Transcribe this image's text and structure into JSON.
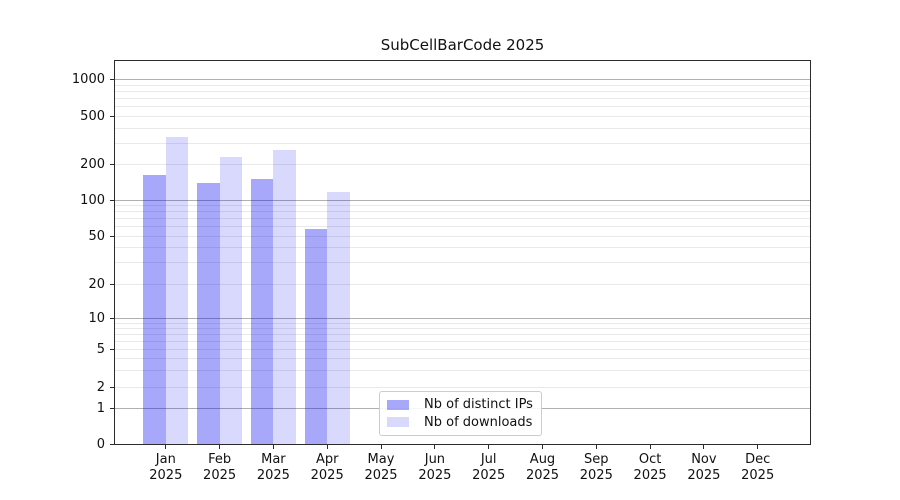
{
  "title": "SubCellBarCode 2025",
  "chart_data": {
    "type": "bar",
    "title": "SubCellBarCode 2025",
    "xlabel": "",
    "ylabel": "",
    "categories": [
      "Jan",
      "Feb",
      "Mar",
      "Apr",
      "May",
      "Jun",
      "Jul",
      "Aug",
      "Sep",
      "Oct",
      "Nov",
      "Dec"
    ],
    "category_year": "2025",
    "series": [
      {
        "name": "Nb of distinct IPs",
        "color": "rgba(0,0,240,0.34)",
        "color_hex_on_white": "#a8a8f8",
        "values": [
          162,
          140,
          152,
          57,
          0,
          0,
          0,
          0,
          0,
          0,
          0,
          0
        ]
      },
      {
        "name": "Nb of downloads",
        "color": "rgba(0,0,240,0.15)",
        "color_hex_on_white": "#d9d9fc",
        "values": [
          340,
          230,
          262,
          118,
          0,
          0,
          0,
          0,
          0,
          0,
          0,
          0
        ]
      }
    ],
    "yscale": "log-like with zero baseline",
    "yticks": [
      0,
      1,
      2,
      5,
      10,
      20,
      50,
      100,
      200,
      500,
      1000
    ],
    "ytick_labels": [
      "0",
      "1",
      "2",
      "5",
      "10",
      "20",
      "50",
      "100",
      "200",
      "500",
      "1000"
    ],
    "ylim": [
      0,
      1450
    ],
    "grid": {
      "horizontal_major": true,
      "horizontal_minor": true,
      "vertical": false
    },
    "legend_position": "lower center"
  }
}
